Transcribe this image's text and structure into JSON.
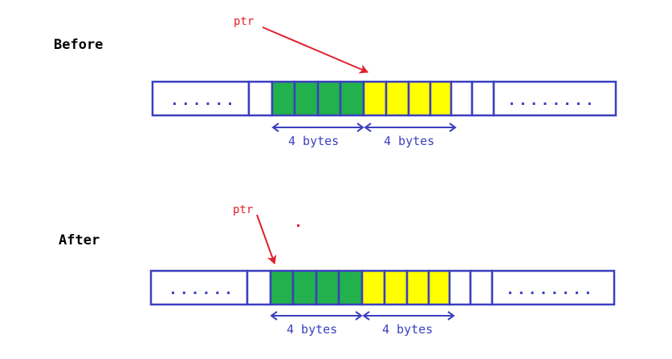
{
  "colors": {
    "outline": "#3b3fbf",
    "pointer": "#e0202c",
    "green": "#22b14c",
    "yellow": "#ffff00",
    "background": "#ffffff"
  },
  "before": {
    "heading": "Before",
    "ptr_label": "ptr",
    "left_ellipsis": "......",
    "right_ellipsis": "........",
    "span_left_label": "4 bytes",
    "span_right_label": "4 bytes"
  },
  "after": {
    "heading": "After",
    "ptr_label": "ptr",
    "left_ellipsis": "......",
    "right_ellipsis": "........",
    "span_left_label": "4 bytes",
    "span_right_label": "4 bytes"
  }
}
